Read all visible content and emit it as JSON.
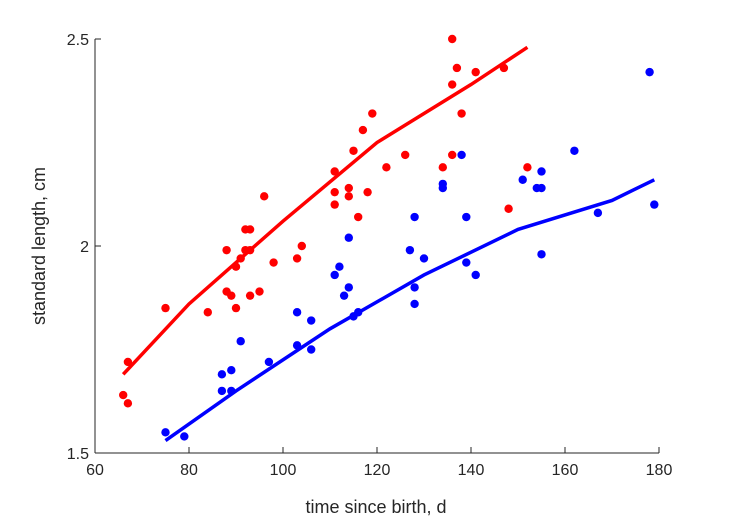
{
  "chart_data": {
    "type": "scatter",
    "xlabel": "time since birth, d",
    "ylabel": "standard length, cm",
    "xlim": [
      60,
      180
    ],
    "ylim": [
      1.5,
      2.5
    ],
    "xticks": [
      "60",
      "80",
      "100",
      "120",
      "140",
      "160",
      "180"
    ],
    "yticks": [
      "1.5",
      "2",
      "2.5"
    ],
    "grid": false,
    "legend": "none",
    "series": [
      {
        "color": "#ff0000",
        "points": [
          [
            66,
            1.64
          ],
          [
            67,
            1.62
          ],
          [
            67,
            1.72
          ],
          [
            75,
            1.85
          ],
          [
            84,
            1.84
          ],
          [
            88,
            1.99
          ],
          [
            88,
            1.89
          ],
          [
            89,
            1.88
          ],
          [
            90,
            1.85
          ],
          [
            90,
            1.95
          ],
          [
            91,
            1.97
          ],
          [
            92,
            1.99
          ],
          [
            92,
            2.04
          ],
          [
            93,
            2.04
          ],
          [
            93,
            1.99
          ],
          [
            93,
            1.88
          ],
          [
            95,
            1.89
          ],
          [
            96,
            2.12
          ],
          [
            98,
            1.96
          ],
          [
            103,
            1.97
          ],
          [
            104,
            2.0
          ],
          [
            111,
            2.18
          ],
          [
            111,
            2.13
          ],
          [
            111,
            2.1
          ],
          [
            114,
            2.14
          ],
          [
            114,
            2.12
          ],
          [
            115,
            2.23
          ],
          [
            116,
            2.07
          ],
          [
            117,
            2.28
          ],
          [
            118,
            2.13
          ],
          [
            119,
            2.32
          ],
          [
            122,
            2.19
          ],
          [
            126,
            2.22
          ],
          [
            134,
            2.19
          ],
          [
            136,
            2.5
          ],
          [
            136,
            2.39
          ],
          [
            136,
            2.22
          ],
          [
            137,
            2.43
          ],
          [
            138,
            2.32
          ],
          [
            141,
            2.42
          ],
          [
            147,
            2.43
          ],
          [
            148,
            2.09
          ],
          [
            152,
            2.19
          ]
        ],
        "fit": [
          [
            66,
            1.69
          ],
          [
            80,
            1.86
          ],
          [
            100,
            2.06
          ],
          [
            120,
            2.25
          ],
          [
            140,
            2.39
          ],
          [
            152,
            2.48
          ]
        ]
      },
      {
        "color": "#0000ff",
        "points": [
          [
            75,
            1.55
          ],
          [
            79,
            1.54
          ],
          [
            87,
            1.69
          ],
          [
            87,
            1.65
          ],
          [
            89,
            1.7
          ],
          [
            89,
            1.65
          ],
          [
            91,
            1.77
          ],
          [
            97,
            1.72
          ],
          [
            103,
            1.84
          ],
          [
            103,
            1.76
          ],
          [
            106,
            1.82
          ],
          [
            106,
            1.75
          ],
          [
            111,
            1.93
          ],
          [
            112,
            1.95
          ],
          [
            113,
            1.88
          ],
          [
            114,
            1.9
          ],
          [
            114,
            2.02
          ],
          [
            115,
            1.83
          ],
          [
            116,
            1.84
          ],
          [
            127,
            1.99
          ],
          [
            128,
            2.07
          ],
          [
            128,
            1.9
          ],
          [
            128,
            1.86
          ],
          [
            130,
            1.97
          ],
          [
            134,
            2.15
          ],
          [
            134,
            2.14
          ],
          [
            138,
            2.22
          ],
          [
            139,
            2.07
          ],
          [
            139,
            1.96
          ],
          [
            141,
            1.93
          ],
          [
            151,
            2.16
          ],
          [
            154,
            2.14
          ],
          [
            155,
            2.18
          ],
          [
            155,
            2.14
          ],
          [
            155,
            1.98
          ],
          [
            162,
            2.23
          ],
          [
            167,
            2.08
          ],
          [
            178,
            2.42
          ],
          [
            179,
            2.1
          ]
        ],
        "fit": [
          [
            75,
            1.53
          ],
          [
            90,
            1.65
          ],
          [
            110,
            1.8
          ],
          [
            130,
            1.93
          ],
          [
            150,
            2.04
          ],
          [
            170,
            2.11
          ],
          [
            179,
            2.16
          ]
        ]
      }
    ]
  }
}
